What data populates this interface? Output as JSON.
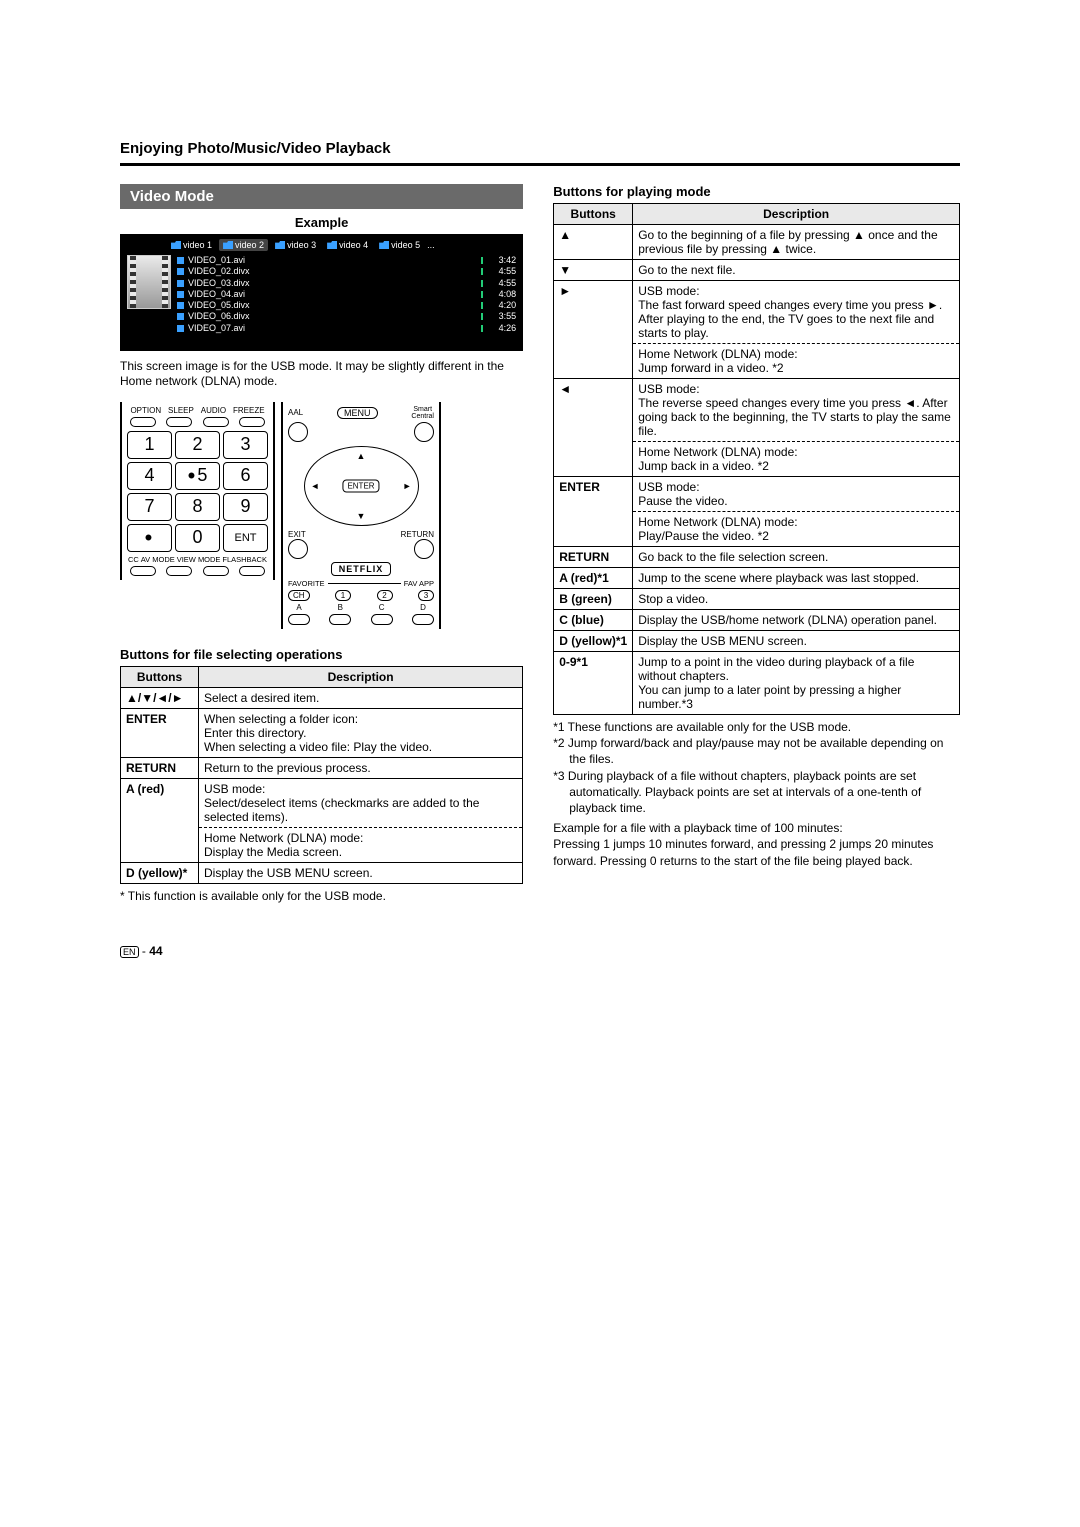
{
  "page_title": "Enjoying Photo/Music/Video Playback",
  "video_mode_label": "Video Mode",
  "example_label": "Example",
  "tabs": [
    {
      "label": "video 1",
      "sel": false
    },
    {
      "label": "video 2",
      "sel": true
    },
    {
      "label": "video 3",
      "sel": false
    },
    {
      "label": "video 4",
      "sel": false
    },
    {
      "label": "video 5",
      "sel": false
    }
  ],
  "files": [
    {
      "name": "VIDEO_01.avi",
      "dur": "3:42"
    },
    {
      "name": "VIDEO_02.divx",
      "dur": "4:55"
    },
    {
      "name": "VIDEO_03.divx",
      "dur": "4:55"
    },
    {
      "name": "VIDEO_04.avi",
      "dur": "4:08"
    },
    {
      "name": "VIDEO_05.divx",
      "dur": "4:20"
    },
    {
      "name": "VIDEO_06.divx",
      "dur": "3:55"
    },
    {
      "name": "VIDEO_07.avi",
      "dur": "4:26"
    }
  ],
  "caption": "This screen image is for the USB mode. It may be slightly different in the Home network (DLNA) mode.",
  "remote_left": {
    "top_labels": [
      "OPTION",
      "SLEEP",
      "AUDIO",
      "FREEZE"
    ],
    "numbers": [
      "1",
      "2",
      "3",
      "4",
      "•5",
      "6",
      "7",
      "8",
      "9",
      "•",
      "0",
      "ENT"
    ],
    "bottom_labels": [
      "CC",
      "AV MODE",
      "VIEW MODE",
      "FLASHBACK"
    ]
  },
  "remote_right": {
    "aal": "AAL",
    "menu": "MENU",
    "smart": "Smart\nCentral",
    "enter": "ENTER",
    "exit": "EXIT",
    "return": "RETURN",
    "netflix": "NETFLIX",
    "favorite": "FAVORITE",
    "favapp": "FAV APP",
    "chips": [
      "CH",
      "1",
      "2",
      "3"
    ],
    "abcd": [
      "A",
      "B",
      "C",
      "D"
    ]
  },
  "table1_title": "Buttons for file selecting operations",
  "table1": {
    "h1": "Buttons",
    "h2": "Description",
    "rows": [
      {
        "b": "▲/▼/◄/►",
        "d": "Select a desired item."
      },
      {
        "b": "ENTER",
        "d": "When selecting a folder icon:\nEnter this directory.\nWhen selecting a video file: Play the video."
      },
      {
        "b": "RETURN",
        "d": "Return to the previous process."
      },
      {
        "b": "A (red)",
        "d1": "USB mode:\nSelect/deselect items (checkmarks are added to the selected items).",
        "d2": "Home Network (DLNA) mode:\nDisplay the Media screen."
      },
      {
        "b": "D (yellow)*",
        "d": "Display the USB MENU screen."
      }
    ]
  },
  "table1_foot": "* This function is available only for the USB mode.",
  "table2_title": "Buttons for playing mode",
  "table2": {
    "h1": "Buttons",
    "h2": "Description",
    "rows": [
      {
        "b": "▲",
        "d": "Go to the beginning of a file by pressing ▲ once and the previous file by pressing ▲ twice."
      },
      {
        "b": "▼",
        "d": "Go to the next file."
      },
      {
        "b": "►",
        "d1": "USB mode:\nThe fast forward speed changes every time you press ►. After playing to the end, the TV goes to the next file and starts to play.",
        "d2": "Home Network (DLNA) mode:\nJump forward in a video. *2"
      },
      {
        "b": "◄",
        "d1": "USB mode:\nThe reverse speed changes every time you press ◄. After going back to the beginning, the TV starts to play the same file.",
        "d2": "Home Network (DLNA) mode:\nJump back in a video. *2"
      },
      {
        "b": "ENTER",
        "d1": "USB mode:\nPause the video.",
        "d2": "Home Network (DLNA) mode:\nPlay/Pause the video. *2"
      },
      {
        "b": "RETURN",
        "d": "Go back to the file selection screen."
      },
      {
        "b": "A (red)*1",
        "d": "Jump to the scene where playback was last stopped."
      },
      {
        "b": "B (green)",
        "d": "Stop a video."
      },
      {
        "b": "C (blue)",
        "d": "Display the USB/home network (DLNA) operation panel."
      },
      {
        "b": "D (yellow)*1",
        "d": "Display the USB MENU screen."
      },
      {
        "b": "0-9*1",
        "d": "Jump to a point in the video during playback of a file without chapters.\nYou can jump to a later point by pressing a higher number.*3"
      }
    ]
  },
  "footnotes": [
    "*1 These functions are available only for the USB mode.",
    "*2 Jump forward/back and play/pause may not be available depending on the files.",
    "*3 During playback of a file without chapters, playback points are set automatically. Playback points are set at intervals of a one-tenth of playback time."
  ],
  "example_text": "Example for a file with a playback time of 100 minutes:\nPressing 1 jumps 10 minutes forward, and pressing 2 jumps 20 minutes forward. Pressing 0 returns to the start of the file being played back.",
  "page_number_label": "EN",
  "page_number": "44"
}
